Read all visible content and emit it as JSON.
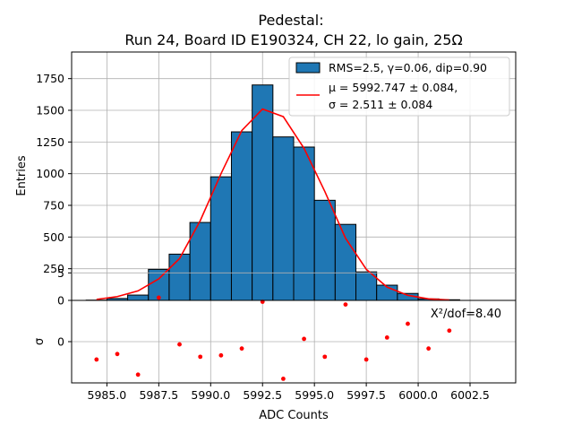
{
  "chart_data": {
    "type": "bar",
    "title_line1": "Pedestal:",
    "title_line2": "Run 24, Board ID E190324, CH 22, lo gain, 25Ω",
    "xlabel": "ADC Counts",
    "ylabel_top": "Entries",
    "ylabel_bottom": "σ",
    "grid": true,
    "legend_placement": "top-right",
    "colors": {
      "bar": "#1f77b4",
      "fit": "#ff0000",
      "resid": "#ff0000",
      "grid": "#b0b0b0"
    },
    "xlim": [
      5983.3,
      6004.7
    ],
    "ylim_top": [
      0,
      1960
    ],
    "ylim_bottom": [
      -3.0,
      3.0
    ],
    "x_ticks": [
      5985.0,
      5987.5,
      5990.0,
      5992.5,
      5995.0,
      5997.5,
      6000.0,
      6002.5
    ],
    "x_tick_labels": [
      "5985.0",
      "5987.5",
      "5990.0",
      "5992.5",
      "5995.0",
      "5997.5",
      "6000.0",
      "6002.5"
    ],
    "y_ticks_top": [
      0,
      250,
      500,
      750,
      1000,
      1250,
      1500,
      1750
    ],
    "y_tick_labels_top": [
      "0",
      "250",
      "500",
      "750",
      "1000",
      "1250",
      "1500",
      "1750"
    ],
    "y_ticks_bottom": [
      0,
      5
    ],
    "y_tick_labels_bottom": [
      "0",
      "5"
    ],
    "histogram": {
      "bin_edges": [
        5984,
        5985,
        5986,
        5987,
        5988,
        5989,
        5990,
        5991,
        5992,
        5993,
        5994,
        5995,
        5996,
        5997,
        5998,
        5999,
        6000,
        6001,
        6002
      ],
      "counts": [
        2,
        15,
        42,
        245,
        365,
        615,
        975,
        1330,
        1700,
        1290,
        1210,
        790,
        600,
        225,
        120,
        55,
        12,
        5
      ]
    },
    "fit_curve": {
      "x": [
        5984.5,
        5985.5,
        5986.5,
        5987.5,
        5988.5,
        5989.5,
        5990.5,
        5991.5,
        5992.5,
        5993.5,
        5994.5,
        5995.5,
        5996.5,
        5997.5,
        5998.5,
        5999.5,
        6000.5,
        6001.5
      ],
      "y": [
        8,
        30,
        75,
        170,
        330,
        630,
        1000,
        1340,
        1510,
        1450,
        1200,
        860,
        490,
        245,
        105,
        40,
        12,
        3
      ]
    },
    "residuals": {
      "x": [
        5984.5,
        5985.5,
        5986.5,
        5987.5,
        5988.5,
        5989.5,
        5990.5,
        5991.5,
        5992.5,
        5993.5,
        5994.5,
        5995.5,
        5996.5,
        5997.5,
        5998.5,
        5999.5,
        6000.5,
        6001.5
      ],
      "y": [
        -1.3,
        -0.9,
        -2.4,
        3.2,
        -0.2,
        -1.1,
        -1.0,
        -0.5,
        2.9,
        -2.7,
        0.2,
        -1.1,
        2.7,
        -1.3,
        0.3,
        1.3,
        -0.5,
        0.8
      ]
    },
    "legend": {
      "hist_label": "RMS=2.5, γ=0.06, dip=0.90",
      "fit_label_line1": "μ = 5992.747 ± 0.084,",
      "fit_label_line2": "σ = 2.511 ± 0.084"
    },
    "annotation": "X²/dof=8.40"
  }
}
